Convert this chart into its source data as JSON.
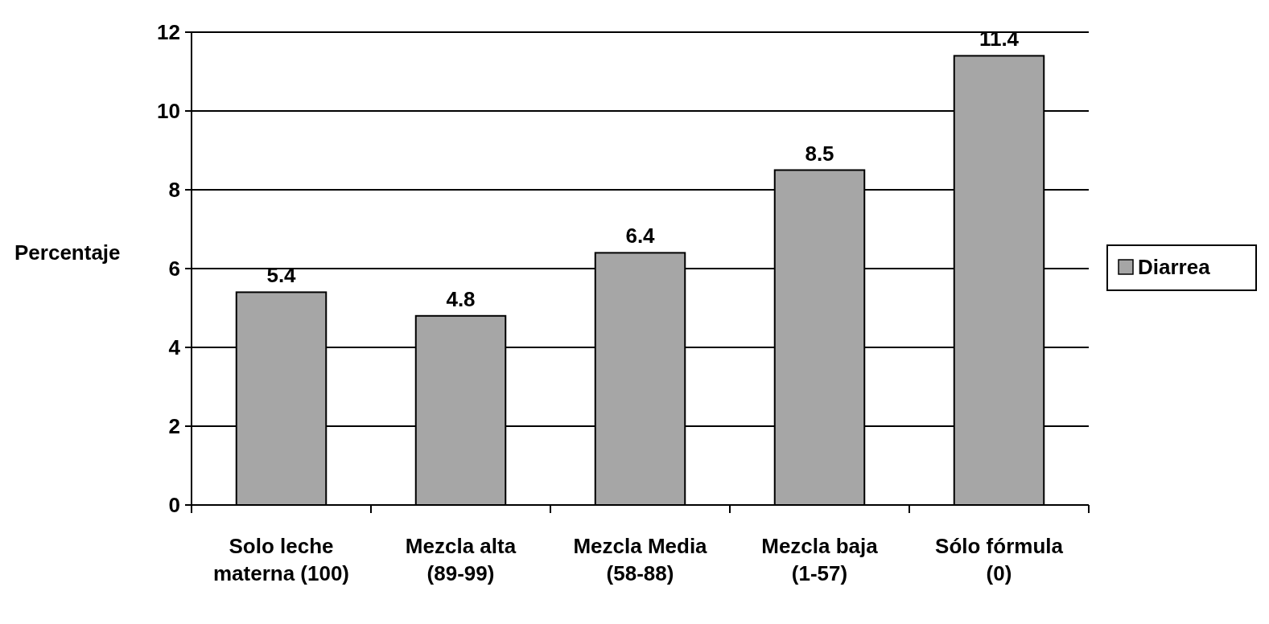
{
  "chart_data": {
    "type": "bar",
    "ylabel": "Percentaje",
    "categories": [
      "Solo leche materna (100)",
      "Mezcla alta (89-99)",
      "Mezcla Media (58-88)",
      "Mezcla baja (1-57)",
      "Sólo fórmula (0)"
    ],
    "series": [
      {
        "name": "Diarrea",
        "color": "#a6a6a6",
        "values": [
          5.4,
          4.8,
          6.4,
          8.5,
          11.4
        ]
      }
    ],
    "ylim": [
      0,
      12
    ],
    "yticks": [
      0,
      2,
      4,
      6,
      8,
      10,
      12
    ],
    "grid": "y",
    "data_labels": true,
    "legend": "right"
  }
}
